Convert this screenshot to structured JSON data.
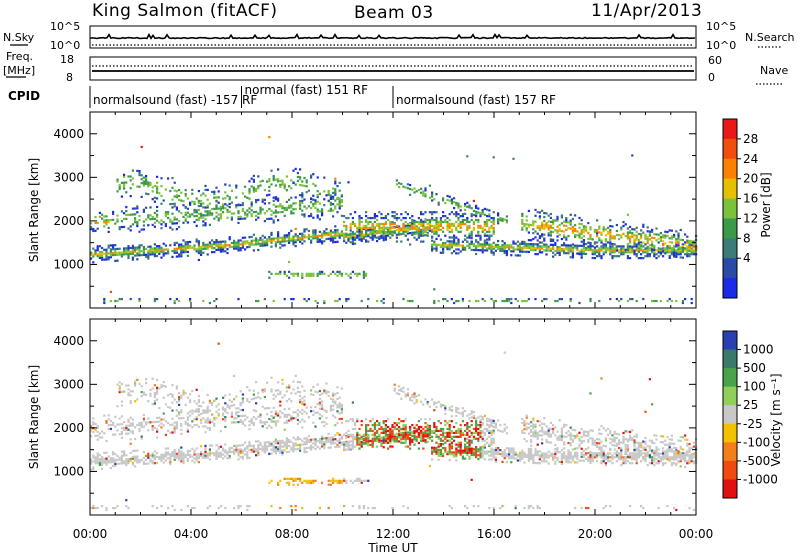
{
  "header": {
    "station": "King Salmon (fitACF)",
    "beam": "Beam 03",
    "date": "11/Apr/2013"
  },
  "strip": {
    "nsky_label": "N.Sky",
    "nsky_ticks": [
      "10^5",
      "10^0"
    ],
    "nsearch_label": "N.Search",
    "nsearch_ticks": [
      "10^5",
      "10^0"
    ],
    "freq_label": "Freq.",
    "freq_unit": "[MHz]",
    "freq_ticks": [
      "18",
      "8"
    ],
    "nave_label": "Nave",
    "nave_ticks": [
      "60",
      "0"
    ],
    "cpid_label": "CPID"
  },
  "cpid_segments": [
    {
      "label": "normalsound (fast) -157 RF",
      "start_hour": 0,
      "end_hour": 6
    },
    {
      "label": "normal (fast) 151 RF",
      "start_hour": 6,
      "end_hour": 12
    },
    {
      "label": "normalsound (fast) 157 RF",
      "start_hour": 12,
      "end_hour": 24
    }
  ],
  "chart_data": [
    {
      "type": "heatmap",
      "panel": "power",
      "ylabel": "Slant Range [km]",
      "ylim": [
        0,
        4500
      ],
      "yticks": [
        "1000",
        "2000",
        "3000",
        "4000"
      ],
      "colorbar": {
        "label": "Power [dB]",
        "ticks": [
          "28",
          "24",
          "20",
          "16",
          "12",
          "8",
          "4"
        ],
        "colors": [
          "#e61a1a",
          "#f24d0d",
          "#ff8000",
          "#e6bf00",
          "#7ac23a",
          "#3a9a4a",
          "#3d7a7a",
          "#2a4aa8",
          "#1a2ae6"
        ]
      }
    },
    {
      "type": "heatmap",
      "panel": "velocity",
      "ylabel": "Slant Range [km]",
      "ylim": [
        0,
        4500
      ],
      "yticks": [
        "1000",
        "2000",
        "3000",
        "4000"
      ],
      "colorbar": {
        "label": "Velocity [m s⁻¹]",
        "ticks": [
          "1000",
          "500",
          "100",
          "25",
          "-25",
          "-100",
          "-500",
          "-1000"
        ],
        "colors": [
          "#2a3fb0",
          "#3a7a6a",
          "#4aa34a",
          "#8fd05a",
          "#c8c8c8",
          "#f2c200",
          "#f27f1a",
          "#f04a10",
          "#e01010"
        ]
      }
    }
  ],
  "xaxis": {
    "label": "Time UT",
    "ticks": [
      "00:00",
      "04:00",
      "08:00",
      "12:00",
      "16:00",
      "20:00",
      "00:00"
    ],
    "xlim_hours": [
      0,
      24
    ]
  }
}
